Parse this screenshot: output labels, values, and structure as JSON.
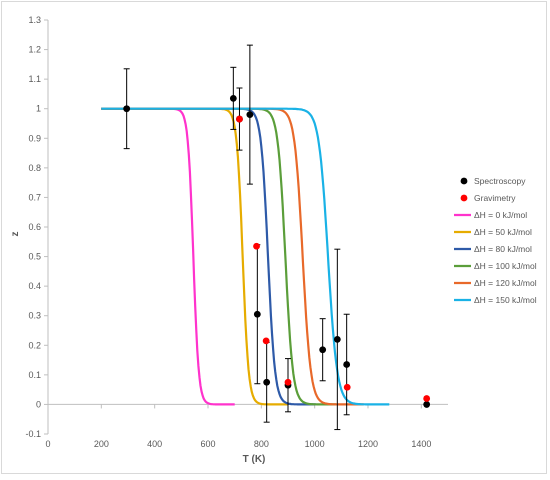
{
  "chart_data": {
    "type": "scatter",
    "title": "",
    "xlabel": "T (K)",
    "ylabel": "z",
    "xlim": [
      0,
      1500
    ],
    "ylim": [
      -0.1,
      1.3
    ],
    "xticks": [
      0,
      200,
      400,
      600,
      800,
      1000,
      1200,
      1400
    ],
    "yticks": [
      -0.1,
      0,
      0.1,
      0.2,
      0.3,
      0.4,
      0.5,
      0.6,
      0.7,
      0.8,
      0.9,
      1,
      1.1,
      1.2,
      1.3
    ],
    "ytick_labels": [
      "-0.1",
      "0",
      "0.1",
      "0.2",
      "0.3",
      "0.4",
      "0.5",
      "0.6",
      "0.7",
      "0.8",
      "0.9",
      "1",
      "1.1",
      "1.2",
      "1.3"
    ],
    "grid": false,
    "legend_position": "right",
    "points": [
      {
        "name": "Spectroscopy",
        "color": "#000000",
        "data": [
          {
            "x": 295,
            "y": 1.0,
            "err": 0.135
          },
          {
            "x": 695,
            "y": 1.035,
            "err": 0.105
          },
          {
            "x": 718,
            "y": 0.965,
            "err": 0.105
          },
          {
            "x": 757,
            "y": 0.98,
            "err": 0.235
          },
          {
            "x": 785,
            "y": 0.305,
            "err": 0.235
          },
          {
            "x": 820,
            "y": 0.075,
            "err": 0.135
          },
          {
            "x": 900,
            "y": 0.065,
            "err": 0.09
          },
          {
            "x": 1030,
            "y": 0.185,
            "err": 0.105
          },
          {
            "x": 1085,
            "y": 0.22,
            "err": 0.305
          },
          {
            "x": 1120,
            "y": 0.135,
            "err": 0.17
          },
          {
            "x": 1420,
            "y": 0.0,
            "err": 0
          }
        ]
      },
      {
        "name": "Gravimetry",
        "color": "#ff0000",
        "data": [
          {
            "x": 718,
            "y": 0.965
          },
          {
            "x": 782,
            "y": 0.535
          },
          {
            "x": 818,
            "y": 0.215
          },
          {
            "x": 900,
            "y": 0.075
          },
          {
            "x": 1122,
            "y": 0.058
          },
          {
            "x": 1420,
            "y": 0.02
          }
        ]
      }
    ],
    "lines": [
      {
        "name": "ΔH = 0 kJ/mol",
        "color": "#ff33cc",
        "t50": 545,
        "width": 10,
        "xmax": 700
      },
      {
        "name": "ΔH = 50 kJ/mol",
        "color": "#e6ac00",
        "t50": 730,
        "width": 11,
        "xmax": 900
      },
      {
        "name": "ΔH = 80 kJ/mol",
        "color": "#2e5aa8",
        "t50": 825,
        "width": 13,
        "xmax": 1005
      },
      {
        "name": "ΔH = 100 kJ/mol",
        "color": "#5b9e3a",
        "t50": 890,
        "width": 14,
        "xmax": 1080
      },
      {
        "name": "ΔH = 120 kJ/mol",
        "color": "#e8692a",
        "t50": 955,
        "width": 15,
        "xmax": 1185
      },
      {
        "name": "ΔH = 150 kJ/mol",
        "color": "#1ab2e6",
        "t50": 1050,
        "width": 17,
        "xmax": 1280
      }
    ]
  }
}
